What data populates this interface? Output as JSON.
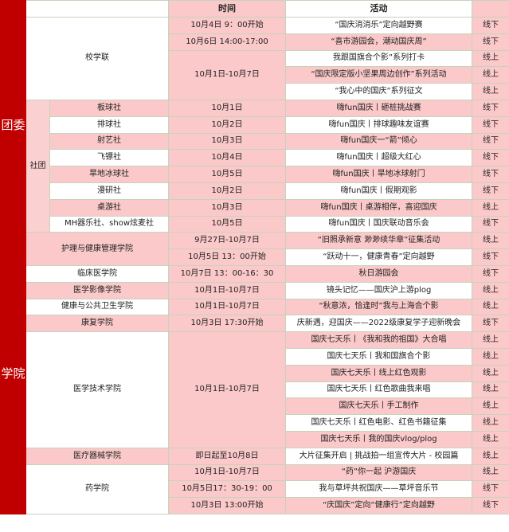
{
  "header": {
    "time_label": "时间",
    "activity_label": "活动"
  },
  "colors": {
    "section": "#c00000",
    "pink": "#fbc9c9",
    "border": "#c5d3bd"
  },
  "sections": [
    {
      "label": "团委",
      "units": [
        {
          "name": "校学联",
          "slots": [
            {
              "time": "10月4日 9：00开始",
              "items": [
                {
                  "activity": "“国庆消消乐”定向越野赛",
                  "mode": "线下"
                }
              ]
            },
            {
              "time": "10月6日 14:00-17:00",
              "items": [
                {
                  "activity": "“喜市游园会，潮动国庆周”",
                  "mode": "线下"
                }
              ]
            },
            {
              "time": "10月1日-10月7日",
              "items": [
                {
                  "activity": "我跟国旗合个影”系列打卡",
                  "mode": "线上"
                },
                {
                  "activity": "“国庆限定版小坚果周边创作”系列活动",
                  "mode": "线上"
                },
                {
                  "activity": "“我心中的国庆”系列征文",
                  "mode": "线上"
                }
              ]
            }
          ]
        },
        {
          "category": "社团",
          "name": "板球社",
          "slots": [
            {
              "time": "10月1日",
              "items": [
                {
                  "activity": "嗨fun国庆丨砸桩挑战赛",
                  "mode": "线下"
                }
              ]
            }
          ]
        },
        {
          "category": "社团",
          "name": "排球社",
          "slots": [
            {
              "time": "10月2日",
              "items": [
                {
                  "activity": "嗨fun国庆丨排球趣味友谊赛",
                  "mode": "线下"
                }
              ]
            }
          ]
        },
        {
          "category": "社团",
          "name": "射艺社",
          "slots": [
            {
              "time": "10月3日",
              "items": [
                {
                  "activity": "嗨fun国庆一“箭”倾心",
                  "mode": "线下"
                }
              ]
            }
          ]
        },
        {
          "category": "社团",
          "name": "飞镖社",
          "slots": [
            {
              "time": "10月4日",
              "items": [
                {
                  "activity": "嗨fun国庆丨超级大红心",
                  "mode": "线下"
                }
              ]
            }
          ]
        },
        {
          "category": "社团",
          "name": "旱地冰球社",
          "slots": [
            {
              "time": "10月5日",
              "items": [
                {
                  "activity": "嗨fun国庆丨旱地冰球射门",
                  "mode": "线下"
                }
              ]
            }
          ]
        },
        {
          "category": "社团",
          "name": "漫研社",
          "slots": [
            {
              "time": "10月2日",
              "items": [
                {
                  "activity": "嗨fun国庆丨假期观影",
                  "mode": "线下"
                }
              ]
            }
          ]
        },
        {
          "category": "社团",
          "name": "桌游社",
          "slots": [
            {
              "time": "10月3日",
              "items": [
                {
                  "activity": "嗨fun国庆丨桌游相伴，喜迎国庆",
                  "mode": "线上"
                }
              ]
            }
          ]
        },
        {
          "category": "社团",
          "name": "MH器乐社、show炫麦社",
          "slots": [
            {
              "time": "10月5日",
              "items": [
                {
                  "activity": "嗨fun国庆丨国庆联动音乐会",
                  "mode": "线下"
                }
              ]
            }
          ]
        }
      ]
    },
    {
      "label": "学院",
      "units": [
        {
          "name": "护理与健康管理学院",
          "slots": [
            {
              "time": "9月27日-10月7日",
              "items": [
                {
                  "activity": "“旧照承新意 渺渺续华章”征集活动",
                  "mode": "线上"
                }
              ]
            },
            {
              "time": "10月5日 13：00开始",
              "items": [
                {
                  "activity": "“跃动十一，健康青春”定向越野",
                  "mode": "线下"
                }
              ]
            }
          ]
        },
        {
          "name": "临床医学院",
          "slots": [
            {
              "time": "10月7日 13：00-16：30",
              "items": [
                {
                  "activity": "秋日游园会",
                  "mode": "线下"
                }
              ]
            }
          ]
        },
        {
          "name": "医学影像学院",
          "slots": [
            {
              "time": "10月1日-10月7日",
              "items": [
                {
                  "activity": "镜头记忆——国庆沪上游plog",
                  "mode": "线上"
                }
              ]
            }
          ]
        },
        {
          "name": "健康与公共卫生学院",
          "slots": [
            {
              "time": "10月1日-10月7日",
              "items": [
                {
                  "activity": "“秋意浓，恰逢时”我与上海合个影",
                  "mode": "线上"
                }
              ]
            }
          ]
        },
        {
          "name": "康复学院",
          "slots": [
            {
              "time": "10月3日 17:30开始",
              "items": [
                {
                  "activity": "庆新遇，迎国庆——2022级康复学子迎新晚会",
                  "mode": "线下"
                }
              ]
            }
          ]
        },
        {
          "name": "医学技术学院",
          "slots": [
            {
              "time": "10月1日-10月7日",
              "items": [
                {
                  "activity": "国庆七天乐丨《我和我的祖国》大合唱",
                  "mode": "线上"
                },
                {
                  "activity": "国庆七天乐丨我和国旗合个影",
                  "mode": "线上"
                },
                {
                  "activity": "国庆七天乐丨线上红色观影",
                  "mode": "线上"
                },
                {
                  "activity": "国庆七天乐丨红色歌曲我来唱",
                  "mode": "线上"
                },
                {
                  "activity": "国庆七天乐丨手工制作",
                  "mode": "线上"
                },
                {
                  "activity": "国庆七天乐丨红色电影、红色书籍征集",
                  "mode": "线上"
                },
                {
                  "activity": "国庆七天乐丨我的国庆vlog/plog",
                  "mode": "线上"
                }
              ]
            }
          ]
        },
        {
          "name": "医疗器械学院",
          "slots": [
            {
              "time": "即日起至10月8日",
              "items": [
                {
                  "activity": "大片征集开启 | 挑战拍一组宣传大片 - 校园篇",
                  "mode": "线上"
                }
              ]
            }
          ]
        },
        {
          "name": "药学院",
          "slots": [
            {
              "time": "10月1日-10月7日",
              "items": [
                {
                  "activity": "“药”你一起 沪游国庆",
                  "mode": "线上"
                }
              ]
            },
            {
              "time": "10月5日17：30-19：00",
              "items": [
                {
                  "activity": "我与草坪共祝国庆——草坪音乐节",
                  "mode": "线下"
                }
              ]
            },
            {
              "time": "10月3日 13:00开始",
              "items": [
                {
                  "activity": "“庆国庆”定向“健康行”定向越野",
                  "mode": "线下"
                }
              ]
            }
          ]
        }
      ]
    }
  ]
}
